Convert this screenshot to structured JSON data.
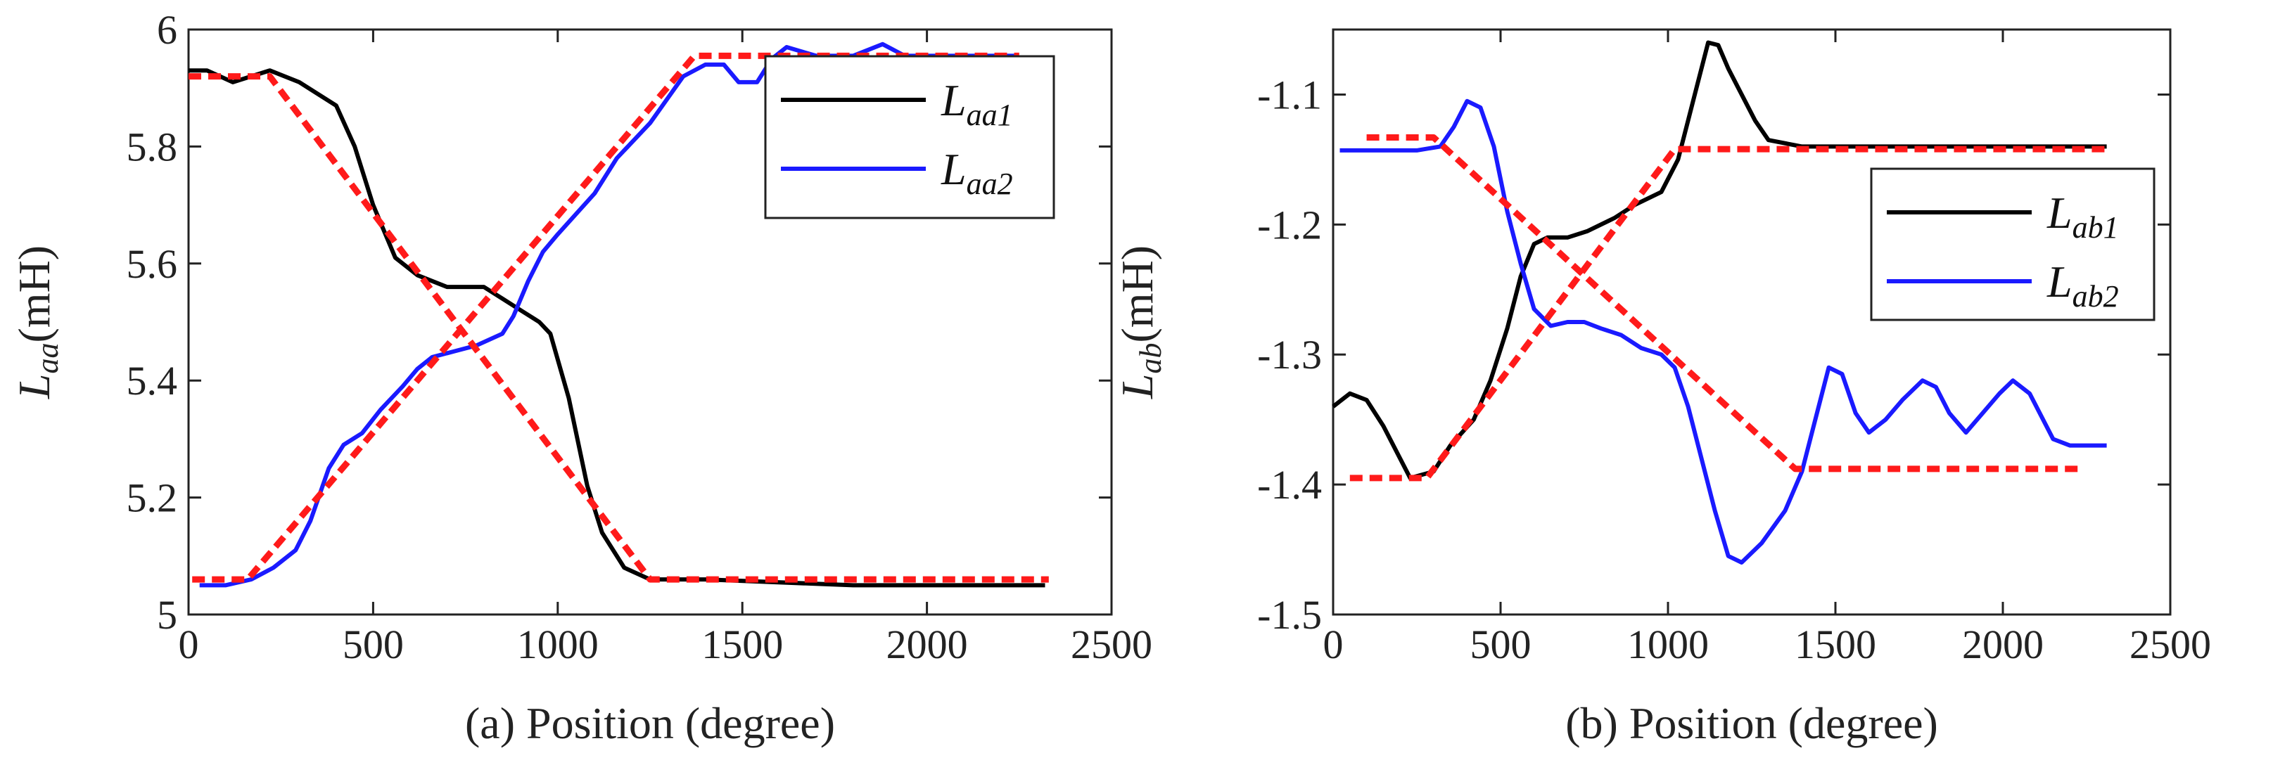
{
  "chart_data": [
    {
      "type": "line",
      "caption": "(a)   Position (degree)",
      "ylabel_main": "L",
      "ylabel_sub": "aa",
      "ylabel_unit": "(mH)",
      "xlim": [
        0,
        2500
      ],
      "ylim": [
        5.0,
        6.0
      ],
      "xticks": [
        "0",
        "500",
        "1000",
        "1500",
        "2000",
        "2500"
      ],
      "yticks": [
        "5",
        "5.2",
        "5.4",
        "5.6",
        "5.8",
        "6"
      ],
      "legend_position": "top-right",
      "series": [
        {
          "name": "L_aa1",
          "label_main": "L",
          "label_sub": "aa1",
          "color": "#000000",
          "style": "solid",
          "in_legend": true,
          "points": [
            [
              0,
              5.93
            ],
            [
              50,
              5.93
            ],
            [
              120,
              5.91
            ],
            [
              220,
              5.93
            ],
            [
              300,
              5.91
            ],
            [
              400,
              5.87
            ],
            [
              450,
              5.8
            ],
            [
              500,
              5.7
            ],
            [
              560,
              5.61
            ],
            [
              620,
              5.58
            ],
            [
              700,
              5.56
            ],
            [
              800,
              5.56
            ],
            [
              850,
              5.54
            ],
            [
              900,
              5.52
            ],
            [
              950,
              5.5
            ],
            [
              980,
              5.48
            ],
            [
              1030,
              5.37
            ],
            [
              1080,
              5.22
            ],
            [
              1120,
              5.14
            ],
            [
              1180,
              5.08
            ],
            [
              1250,
              5.06
            ],
            [
              1400,
              5.06
            ],
            [
              1800,
              5.05
            ],
            [
              2000,
              5.05
            ],
            [
              2320,
              5.05
            ]
          ]
        },
        {
          "name": "L_aa2",
          "label_main": "L",
          "label_sub": "aa2",
          "color": "#1a1aff",
          "style": "solid",
          "in_legend": true,
          "points": [
            [
              30,
              5.05
            ],
            [
              100,
              5.05
            ],
            [
              170,
              5.06
            ],
            [
              230,
              5.08
            ],
            [
              290,
              5.11
            ],
            [
              330,
              5.16
            ],
            [
              380,
              5.25
            ],
            [
              420,
              5.29
            ],
            [
              470,
              5.31
            ],
            [
              520,
              5.35
            ],
            [
              580,
              5.39
            ],
            [
              620,
              5.42
            ],
            [
              660,
              5.44
            ],
            [
              720,
              5.45
            ],
            [
              780,
              5.46
            ],
            [
              850,
              5.48
            ],
            [
              880,
              5.51
            ],
            [
              920,
              5.57
            ],
            [
              960,
              5.62
            ],
            [
              1000,
              5.65
            ],
            [
              1100,
              5.72
            ],
            [
              1160,
              5.78
            ],
            [
              1250,
              5.84
            ],
            [
              1340,
              5.92
            ],
            [
              1400,
              5.94
            ],
            [
              1450,
              5.94
            ],
            [
              1490,
              5.91
            ],
            [
              1540,
              5.91
            ],
            [
              1580,
              5.95
            ],
            [
              1620,
              5.97
            ],
            [
              1700,
              5.955
            ],
            [
              1800,
              5.955
            ],
            [
              1880,
              5.975
            ],
            [
              1940,
              5.955
            ],
            [
              2000,
              5.955
            ],
            [
              2100,
              5.955
            ],
            [
              2240,
              5.955
            ]
          ]
        },
        {
          "name": "fit-aa1",
          "label_main": "",
          "label_sub": "",
          "color": "#ff1a1a",
          "style": "dashed",
          "in_legend": false,
          "points": [
            [
              0,
              5.92
            ],
            [
              220,
              5.92
            ],
            [
              1250,
              5.06
            ],
            [
              2330,
              5.06
            ]
          ]
        },
        {
          "name": "fit-aa2",
          "label_main": "",
          "label_sub": "",
          "color": "#ff1a1a",
          "style": "dashed",
          "in_legend": false,
          "points": [
            [
              10,
              5.06
            ],
            [
              160,
              5.06
            ],
            [
              1370,
              5.955
            ],
            [
              2250,
              5.955
            ]
          ]
        }
      ]
    },
    {
      "type": "line",
      "caption": "(b)   Position (degree)",
      "ylabel_main": "L",
      "ylabel_sub": "ab",
      "ylabel_unit": "(mH)",
      "xlim": [
        0,
        2500
      ],
      "ylim": [
        -1.5,
        -1.05
      ],
      "xticks": [
        "0",
        "500",
        "1000",
        "1500",
        "2000",
        "2500"
      ],
      "yticks": [
        "-1.5",
        "-1.4",
        "-1.3",
        "-1.2",
        "-1.1"
      ],
      "ytick_values": [
        -1.5,
        -1.4,
        -1.3,
        -1.2,
        -1.1
      ],
      "legend_position": "top-right",
      "series": [
        {
          "name": "L_ab1",
          "label_main": "L",
          "label_sub": "ab1",
          "color": "#000000",
          "style": "solid",
          "in_legend": true,
          "points": [
            [
              0,
              -1.34
            ],
            [
              50,
              -1.33
            ],
            [
              100,
              -1.335
            ],
            [
              150,
              -1.355
            ],
            [
              200,
              -1.38
            ],
            [
              230,
              -1.395
            ],
            [
              300,
              -1.39
            ],
            [
              350,
              -1.37
            ],
            [
              420,
              -1.35
            ],
            [
              470,
              -1.32
            ],
            [
              520,
              -1.28
            ],
            [
              560,
              -1.24
            ],
            [
              600,
              -1.215
            ],
            [
              640,
              -1.21
            ],
            [
              700,
              -1.21
            ],
            [
              760,
              -1.205
            ],
            [
              840,
              -1.195
            ],
            [
              900,
              -1.185
            ],
            [
              980,
              -1.175
            ],
            [
              1030,
              -1.15
            ],
            [
              1060,
              -1.12
            ],
            [
              1090,
              -1.09
            ],
            [
              1120,
              -1.06
            ],
            [
              1150,
              -1.062
            ],
            [
              1180,
              -1.08
            ],
            [
              1220,
              -1.1
            ],
            [
              1260,
              -1.12
            ],
            [
              1300,
              -1.135
            ],
            [
              1400,
              -1.14
            ],
            [
              1600,
              -1.14
            ],
            [
              2000,
              -1.14
            ],
            [
              2310,
              -1.14
            ]
          ]
        },
        {
          "name": "L_ab2",
          "label_main": "L",
          "label_sub": "ab2",
          "color": "#1a1aff",
          "style": "solid",
          "in_legend": true,
          "points": [
            [
              20,
              -1.143
            ],
            [
              150,
              -1.143
            ],
            [
              250,
              -1.143
            ],
            [
              320,
              -1.14
            ],
            [
              360,
              -1.125
            ],
            [
              400,
              -1.105
            ],
            [
              440,
              -1.11
            ],
            [
              480,
              -1.14
            ],
            [
              520,
              -1.19
            ],
            [
              560,
              -1.23
            ],
            [
              600,
              -1.265
            ],
            [
              650,
              -1.278
            ],
            [
              700,
              -1.275
            ],
            [
              750,
              -1.275
            ],
            [
              800,
              -1.28
            ],
            [
              860,
              -1.285
            ],
            [
              920,
              -1.295
            ],
            [
              980,
              -1.3
            ],
            [
              1020,
              -1.31
            ],
            [
              1060,
              -1.34
            ],
            [
              1100,
              -1.38
            ],
            [
              1140,
              -1.42
            ],
            [
              1180,
              -1.455
            ],
            [
              1220,
              -1.46
            ],
            [
              1280,
              -1.445
            ],
            [
              1350,
              -1.42
            ],
            [
              1400,
              -1.39
            ],
            [
              1440,
              -1.35
            ],
            [
              1480,
              -1.31
            ],
            [
              1520,
              -1.315
            ],
            [
              1560,
              -1.345
            ],
            [
              1600,
              -1.36
            ],
            [
              1650,
              -1.35
            ],
            [
              1700,
              -1.335
            ],
            [
              1760,
              -1.32
            ],
            [
              1800,
              -1.325
            ],
            [
              1840,
              -1.345
            ],
            [
              1890,
              -1.36
            ],
            [
              1940,
              -1.345
            ],
            [
              1990,
              -1.33
            ],
            [
              2030,
              -1.32
            ],
            [
              2080,
              -1.33
            ],
            [
              2150,
              -1.365
            ],
            [
              2200,
              -1.37
            ],
            [
              2310,
              -1.37
            ]
          ]
        },
        {
          "name": "fit-ab1",
          "label_main": "",
          "label_sub": "",
          "color": "#ff1a1a",
          "style": "dashed",
          "in_legend": false,
          "points": [
            [
              50,
              -1.395
            ],
            [
              280,
              -1.395
            ],
            [
              1020,
              -1.142
            ],
            [
              2310,
              -1.142
            ]
          ]
        },
        {
          "name": "fit-ab2",
          "label_main": "",
          "label_sub": "",
          "color": "#ff1a1a",
          "style": "dashed",
          "in_legend": false,
          "points": [
            [
              100,
              -1.133
            ],
            [
              300,
              -1.133
            ],
            [
              1380,
              -1.388
            ],
            [
              2240,
              -1.388
            ]
          ]
        }
      ]
    }
  ]
}
